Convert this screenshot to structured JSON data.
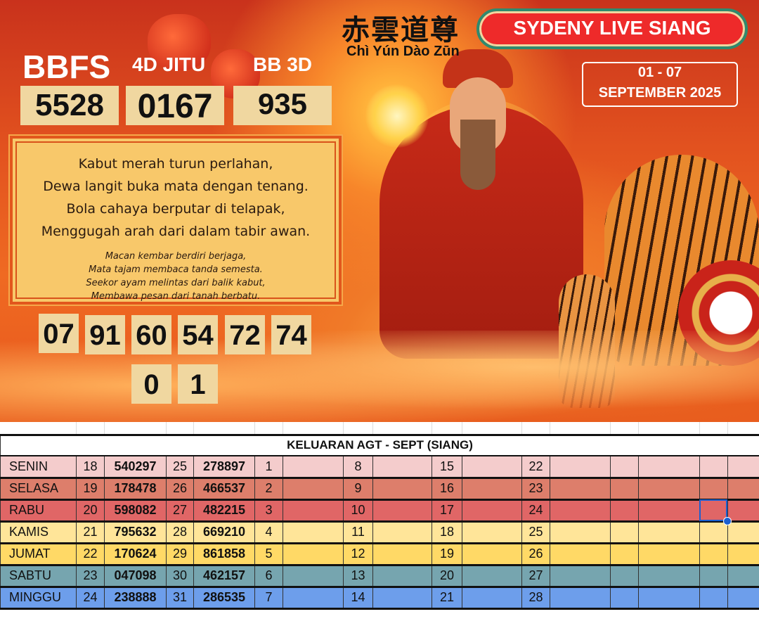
{
  "header": {
    "chinese_title": "赤雲道尊",
    "pinyin": "Chì Yún Dào Zūn",
    "market": "SYDENY LIVE SIANG",
    "date_range": "01 - 07",
    "date_month": "SEPTEMBER 2025"
  },
  "predictions": {
    "bbfs_label": "BBFS",
    "bbfs": "5528",
    "jitu_label": "4D JITU",
    "jitu": "0167",
    "bb3d_label": "BB 3D",
    "bb3d": "935",
    "numbers": [
      "07",
      "91",
      "60",
      "54",
      "72",
      "74"
    ],
    "extra": [
      "0",
      "1"
    ]
  },
  "poem": {
    "main": [
      "Kabut merah turun perlahan,",
      "Dewa langit buka mata dengan tenang.",
      "Bola cahaya berputar di telapak,",
      "Menggugah arah dari dalam tabir awan."
    ],
    "sub": [
      "Macan kembar berdiri berjaga,",
      "Mata tajam membaca tanda semesta.",
      "Seekor ayam melintas dari balik kabut,",
      "Membawa pesan dari tanah berbatu."
    ]
  },
  "table": {
    "title": "KELUARAN AGT - SEPT (SIANG)",
    "row_colors": [
      "#f4cccc",
      "#dd7e6b",
      "#e06666",
      "#ffe599",
      "#ffd966",
      "#76a5af",
      "#6d9eeb"
    ],
    "rows": [
      [
        "SENIN",
        "18",
        "540297",
        "25",
        "278897",
        "1",
        "",
        "8",
        "",
        "15",
        "",
        "22",
        "",
        "",
        "",
        "",
        ""
      ],
      [
        "SELASA",
        "19",
        "178478",
        "26",
        "466537",
        "2",
        "",
        "9",
        "",
        "16",
        "",
        "23",
        "",
        "",
        "",
        "",
        ""
      ],
      [
        "RABU",
        "20",
        "598082",
        "27",
        "482215",
        "3",
        "",
        "10",
        "",
        "17",
        "",
        "24",
        "",
        "",
        "",
        "",
        ""
      ],
      [
        "KAMIS",
        "21",
        "795632",
        "28",
        "669210",
        "4",
        "",
        "11",
        "",
        "18",
        "",
        "25",
        "",
        "",
        "",
        "",
        ""
      ],
      [
        "JUMAT",
        "22",
        "170624",
        "29",
        "861858",
        "5",
        "",
        "12",
        "",
        "19",
        "",
        "26",
        "",
        "",
        "",
        "",
        ""
      ],
      [
        "SABTU",
        "23",
        "047098",
        "30",
        "462157",
        "6",
        "",
        "13",
        "",
        "20",
        "",
        "27",
        "",
        "",
        "",
        "",
        ""
      ],
      [
        "MINGGU",
        "24",
        "238888",
        "31",
        "286535",
        "7",
        "",
        "14",
        "",
        "21",
        "",
        "28",
        "",
        "",
        "",
        "",
        ""
      ]
    ]
  }
}
